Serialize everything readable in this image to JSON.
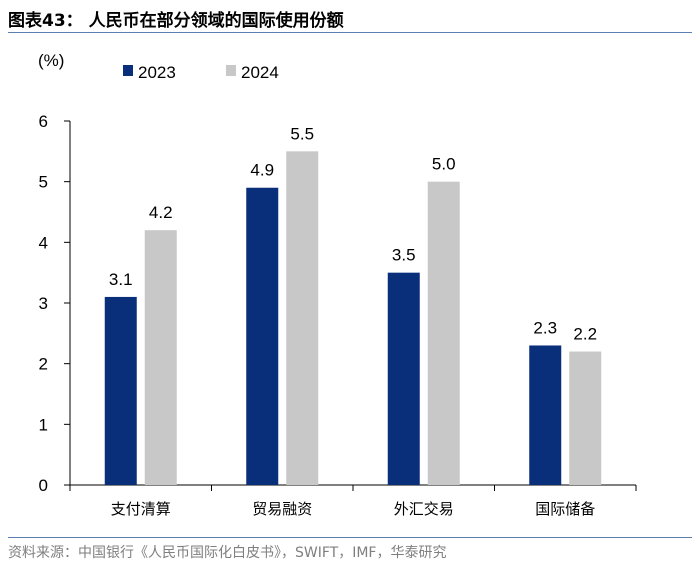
{
  "title": "图表43：  人民币在部分领域的国际使用份额",
  "source": "资料来源：中国银行《人民币国际化白皮书》，SWIFT，IMF，华泰研究",
  "colors": {
    "2023": "#0a2f7a",
    "2024": "#c8c8c8",
    "rule": "#5b7fb0"
  },
  "chart_data": {
    "type": "bar",
    "unit_label": "(%)",
    "categories": [
      "支付清算",
      "贸易融资",
      "外汇交易",
      "国际储备"
    ],
    "series": [
      {
        "name": "2023",
        "values": [
          3.1,
          4.9,
          3.5,
          2.3
        ],
        "labels": [
          "3.1",
          "4.9",
          "3.5",
          "2.3"
        ]
      },
      {
        "name": "2024",
        "values": [
          4.2,
          5.5,
          5.0,
          2.2
        ],
        "labels": [
          "4.2",
          "5.5",
          "5.0",
          "2.2"
        ]
      }
    ],
    "ylim": [
      0,
      6
    ],
    "yticks": [
      "0",
      "1",
      "2",
      "3",
      "4",
      "5",
      "6"
    ],
    "legend_position": "top",
    "grid": false
  }
}
